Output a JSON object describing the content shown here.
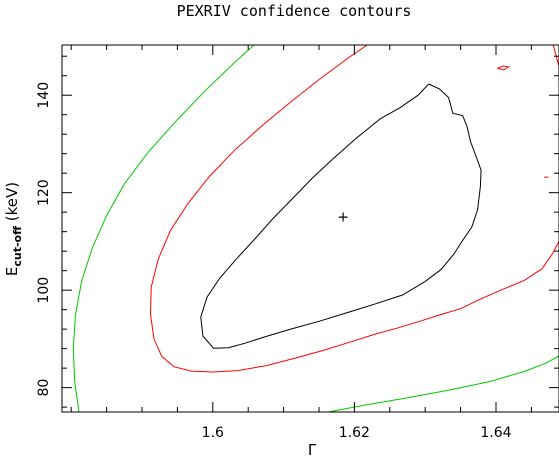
{
  "chart_data": {
    "type": "line",
    "title": "PEXRIV confidence contours",
    "xlabel": "Γ",
    "ylabel": {
      "main": "E",
      "sub": "cut-off",
      "unit": " (keV)"
    },
    "xlim": [
      1.5787,
      1.6489
    ],
    "ylim": [
      75.0,
      150.3
    ],
    "x_ticks": [
      1.6,
      1.62,
      1.64
    ],
    "x_tick_labels": [
      "1.6",
      "1.62",
      "1.64"
    ],
    "y_ticks": [
      80,
      100,
      120,
      140
    ],
    "y_tick_labels": [
      "80",
      "100",
      "120",
      "140"
    ],
    "best_fit": {
      "x": 1.6184,
      "y": 114.9,
      "marker": "+"
    },
    "colors": {
      "black": "#000000",
      "red": "#ff0000",
      "green": "#00c800"
    },
    "series": [
      {
        "color": "black",
        "points": [
          [
            1.6305,
            142.3
          ],
          [
            1.632,
            141.3
          ],
          [
            1.6333,
            139.5
          ],
          [
            1.6339,
            136.3
          ],
          [
            1.6353,
            135.8
          ],
          [
            1.6359,
            133.6
          ],
          [
            1.6364,
            130.5
          ],
          [
            1.6374,
            126.6
          ],
          [
            1.6379,
            124.6
          ],
          [
            1.6378,
            121.3
          ],
          [
            1.6374,
            116.5
          ],
          [
            1.6366,
            113.0
          ],
          [
            1.6353,
            110.2
          ],
          [
            1.634,
            107.3
          ],
          [
            1.6322,
            104.2
          ],
          [
            1.63,
            101.8
          ],
          [
            1.6268,
            99.0
          ],
          [
            1.623,
            97.2
          ],
          [
            1.619,
            95.4
          ],
          [
            1.615,
            93.6
          ],
          [
            1.611,
            92.0
          ],
          [
            1.6075,
            90.5
          ],
          [
            1.6045,
            89.1
          ],
          [
            1.6022,
            88.2
          ],
          [
            1.6001,
            88.1
          ],
          [
            1.5986,
            90.6
          ],
          [
            1.5983,
            94.5
          ],
          [
            1.5992,
            98.6
          ],
          [
            1.601,
            102.5
          ],
          [
            1.6032,
            106.2
          ],
          [
            1.6058,
            110.3
          ],
          [
            1.6085,
            114.7
          ],
          [
            1.6112,
            118.7
          ],
          [
            1.614,
            122.9
          ],
          [
            1.617,
            127.0
          ],
          [
            1.6202,
            131.1
          ],
          [
            1.6236,
            135.1
          ],
          [
            1.6265,
            137.5
          ],
          [
            1.629,
            140.0
          ],
          [
            1.6305,
            142.3
          ]
        ]
      },
      {
        "color": "red",
        "points": [
          [
            1.6218,
            150.3
          ],
          [
            1.619,
            147.5
          ],
          [
            1.615,
            143.2
          ],
          [
            1.611,
            138.6
          ],
          [
            1.607,
            133.8
          ],
          [
            1.603,
            128.6
          ],
          [
            1.5995,
            123.3
          ],
          [
            1.5965,
            117.8
          ],
          [
            1.594,
            112.2
          ],
          [
            1.5923,
            106.4
          ],
          [
            1.5913,
            100.6
          ],
          [
            1.5912,
            95.0
          ],
          [
            1.5917,
            90.0
          ],
          [
            1.5928,
            86.4
          ],
          [
            1.5945,
            84.3
          ],
          [
            1.597,
            83.4
          ],
          [
            1.6,
            83.2
          ],
          [
            1.6035,
            83.5
          ],
          [
            1.6075,
            84.5
          ],
          [
            1.6115,
            86.0
          ],
          [
            1.6155,
            87.6
          ],
          [
            1.6195,
            89.4
          ],
          [
            1.623,
            91.0
          ],
          [
            1.626,
            92.2
          ],
          [
            1.629,
            93.5
          ],
          [
            1.632,
            94.9
          ],
          [
            1.635,
            96.2
          ],
          [
            1.638,
            98.3
          ],
          [
            1.641,
            100.2
          ],
          [
            1.644,
            102.0
          ],
          [
            1.6465,
            104.4
          ],
          [
            1.648,
            107.5
          ],
          [
            1.6489,
            110.0
          ]
        ]
      },
      {
        "color": "red",
        "points": [
          [
            1.6481,
            150.3
          ],
          [
            1.6485,
            148.0
          ],
          [
            1.6489,
            146.0
          ]
        ]
      },
      {
        "color": "green",
        "points": [
          [
            1.6058,
            150.3
          ],
          [
            1.603,
            146.6
          ],
          [
            1.599,
            141.0
          ],
          [
            1.595,
            135.0
          ],
          [
            1.591,
            128.5
          ],
          [
            1.5875,
            121.8
          ],
          [
            1.585,
            115.3
          ],
          [
            1.583,
            108.7
          ],
          [
            1.5815,
            102.0
          ],
          [
            1.5806,
            95.0
          ],
          [
            1.5803,
            88.1
          ],
          [
            1.5805,
            81.2
          ],
          [
            1.5811,
            75.0
          ]
        ]
      },
      {
        "color": "green",
        "points": [
          [
            1.6163,
            75.0
          ],
          [
            1.621,
            76.3
          ],
          [
            1.627,
            77.8
          ],
          [
            1.633,
            79.4
          ],
          [
            1.639,
            81.2
          ],
          [
            1.644,
            83.3
          ],
          [
            1.647,
            85.0
          ],
          [
            1.6489,
            86.5
          ]
        ]
      },
      {
        "color": "red",
        "points": [
          [
            1.6402,
            145.5
          ],
          [
            1.641,
            146.0
          ],
          [
            1.6418,
            145.8
          ],
          [
            1.6411,
            145.2
          ],
          [
            1.6402,
            145.5
          ]
        ]
      },
      {
        "color": "red",
        "points": [
          [
            1.6468,
            123.2
          ],
          [
            1.6474,
            123.2
          ]
        ]
      }
    ]
  }
}
